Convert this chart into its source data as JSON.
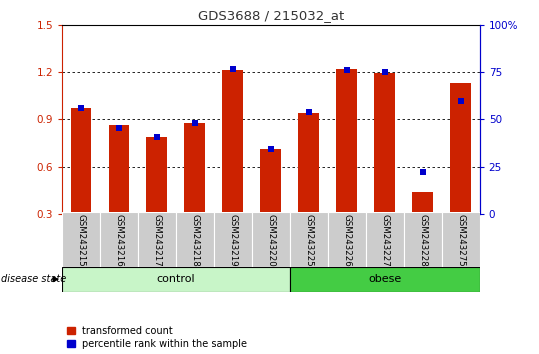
{
  "title": "GDS3688 / 215032_at",
  "samples": [
    "GSM243215",
    "GSM243216",
    "GSM243217",
    "GSM243218",
    "GSM243219",
    "GSM243220",
    "GSM243225",
    "GSM243226",
    "GSM243227",
    "GSM243228",
    "GSM243275"
  ],
  "red_values": [
    0.97,
    0.865,
    0.79,
    0.875,
    1.215,
    0.71,
    0.94,
    1.22,
    1.195,
    0.44,
    1.13
  ],
  "blue_values_left_scale": [
    0.975,
    0.845,
    0.79,
    0.875,
    1.22,
    0.715,
    0.95,
    1.215,
    1.2,
    0.565,
    1.02
  ],
  "groups": [
    {
      "label": "control",
      "start": 0,
      "end": 6,
      "color": "#c8f5c8"
    },
    {
      "label": "obese",
      "start": 6,
      "end": 11,
      "color": "#44cc44"
    }
  ],
  "ylim_left": [
    0.3,
    1.5
  ],
  "ylim_right": [
    0,
    100
  ],
  "yticks_left": [
    0.3,
    0.6,
    0.9,
    1.2,
    1.5
  ],
  "yticks_right": [
    0,
    25,
    50,
    75,
    100
  ],
  "ytick_right_labels": [
    "0",
    "25",
    "50",
    "75",
    "100%"
  ],
  "red_color": "#cc2200",
  "blue_color": "#0000cc",
  "label_red": "transformed count",
  "label_blue": "percentile rank within the sample",
  "disease_state_label": "disease state",
  "left_axis_color": "#cc2200",
  "right_axis_color": "#0000cc",
  "tick_label_bg": "#cccccc",
  "grid_dotted_at": [
    0.6,
    0.9,
    1.2
  ]
}
